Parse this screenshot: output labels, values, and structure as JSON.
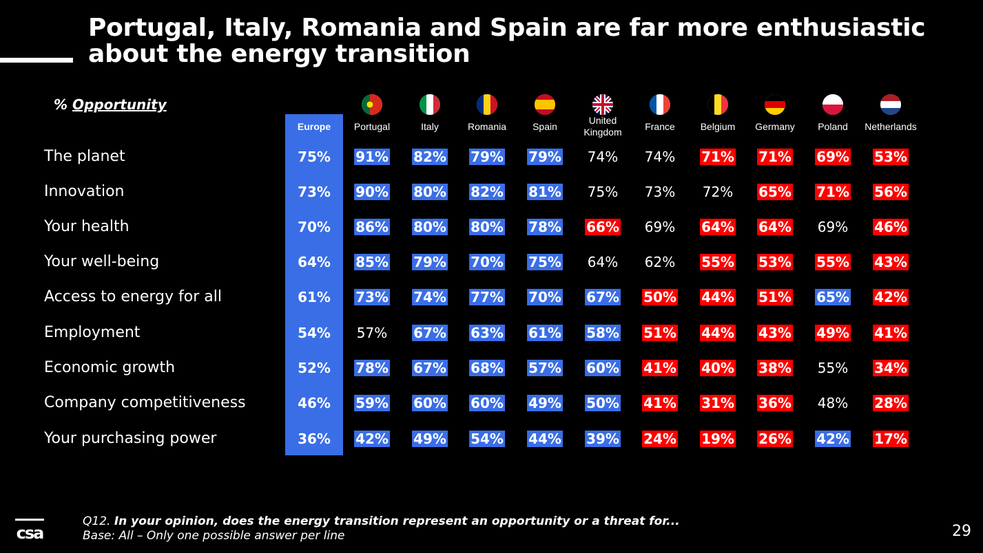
{
  "title": "Portugal, Italy, Romania and Spain are far more enthusiastic about the energy transition",
  "measure": {
    "prefix": "% ",
    "label": "Opportunity"
  },
  "colors": {
    "above_europe": "#3a6ee6",
    "below_europe": "#ff0000",
    "europe_column": "#3a6ee6"
  },
  "chart_data": {
    "type": "table",
    "columns": [
      "Europe",
      "Portugal",
      "Italy",
      "Romania",
      "Spain",
      "United Kingdom",
      "France",
      "Belgium",
      "Germany",
      "Poland",
      "Netherlands"
    ],
    "rows": [
      {
        "label": "The planet",
        "values": [
          "75%",
          "91%",
          "82%",
          "79%",
          "79%",
          "74%",
          "74%",
          "71%",
          "71%",
          "69%",
          "53%"
        ],
        "highlight": [
          "eu",
          "hi",
          "hi",
          "hi",
          "hi",
          "none",
          "none",
          "lo",
          "lo",
          "lo",
          "lo"
        ]
      },
      {
        "label": "Innovation",
        "values": [
          "73%",
          "90%",
          "80%",
          "82%",
          "81%",
          "75%",
          "73%",
          "72%",
          "65%",
          "71%",
          "56%"
        ],
        "highlight": [
          "eu",
          "hi",
          "hi",
          "hi",
          "hi",
          "none",
          "none",
          "none",
          "lo",
          "lo",
          "lo"
        ]
      },
      {
        "label": "Your health",
        "values": [
          "70%",
          "86%",
          "80%",
          "80%",
          "78%",
          "66%",
          "69%",
          "64%",
          "64%",
          "69%",
          "46%"
        ],
        "highlight": [
          "eu",
          "hi",
          "hi",
          "hi",
          "hi",
          "lo",
          "none",
          "lo",
          "lo",
          "none",
          "lo"
        ]
      },
      {
        "label": "Your well-being",
        "values": [
          "64%",
          "85%",
          "79%",
          "70%",
          "75%",
          "64%",
          "62%",
          "55%",
          "53%",
          "55%",
          "43%"
        ],
        "highlight": [
          "eu",
          "hi",
          "hi",
          "hi",
          "hi",
          "none",
          "none",
          "lo",
          "lo",
          "lo",
          "lo"
        ]
      },
      {
        "label": "Access to energy for all",
        "values": [
          "61%",
          "73%",
          "74%",
          "77%",
          "70%",
          "67%",
          "50%",
          "44%",
          "51%",
          "65%",
          "42%"
        ],
        "highlight": [
          "eu",
          "hi",
          "hi",
          "hi",
          "hi",
          "hi",
          "lo",
          "lo",
          "lo",
          "hi",
          "lo"
        ]
      },
      {
        "label": "Employment",
        "values": [
          "54%",
          "57%",
          "67%",
          "63%",
          "61%",
          "58%",
          "51%",
          "44%",
          "43%",
          "49%",
          "41%"
        ],
        "highlight": [
          "eu",
          "none",
          "hi",
          "hi",
          "hi",
          "hi",
          "lo",
          "lo",
          "lo",
          "lo",
          "lo"
        ]
      },
      {
        "label": "Economic growth",
        "values": [
          "52%",
          "78%",
          "67%",
          "68%",
          "57%",
          "60%",
          "41%",
          "40%",
          "38%",
          "55%",
          "34%"
        ],
        "highlight": [
          "eu",
          "hi",
          "hi",
          "hi",
          "hi",
          "hi",
          "lo",
          "lo",
          "lo",
          "none",
          "lo"
        ]
      },
      {
        "label": "Company competitiveness",
        "values": [
          "46%",
          "59%",
          "60%",
          "60%",
          "49%",
          "50%",
          "41%",
          "31%",
          "36%",
          "48%",
          "28%"
        ],
        "highlight": [
          "eu",
          "hi",
          "hi",
          "hi",
          "hi",
          "hi",
          "lo",
          "lo",
          "lo",
          "none",
          "lo"
        ]
      },
      {
        "label": "Your purchasing power",
        "values": [
          "36%",
          "42%",
          "49%",
          "54%",
          "44%",
          "39%",
          "24%",
          "19%",
          "26%",
          "42%",
          "17%"
        ],
        "highlight": [
          "eu",
          "hi",
          "hi",
          "hi",
          "hi",
          "hi",
          "lo",
          "lo",
          "lo",
          "hi",
          "lo"
        ]
      }
    ]
  },
  "flags": [
    {
      "country": "Portugal",
      "icon": "portugal-flag-icon"
    },
    {
      "country": "Italy",
      "icon": "italy-flag-icon"
    },
    {
      "country": "Romania",
      "icon": "romania-flag-icon"
    },
    {
      "country": "Spain",
      "icon": "spain-flag-icon"
    },
    {
      "country": "United Kingdom",
      "icon": "uk-flag-icon"
    },
    {
      "country": "France",
      "icon": "france-flag-icon"
    },
    {
      "country": "Belgium",
      "icon": "belgium-flag-icon"
    },
    {
      "country": "Germany",
      "icon": "germany-flag-icon"
    },
    {
      "country": "Poland",
      "icon": "poland-flag-icon"
    },
    {
      "country": "Netherlands",
      "icon": "netherlands-flag-icon"
    }
  ],
  "footnote": {
    "q_prefix": "Q12. ",
    "question": "In your opinion, does the energy transition represent an opportunity or a threat for...",
    "base": "Base: All – Only one possible answer per line"
  },
  "logo_text": "csa",
  "page_number": "29"
}
